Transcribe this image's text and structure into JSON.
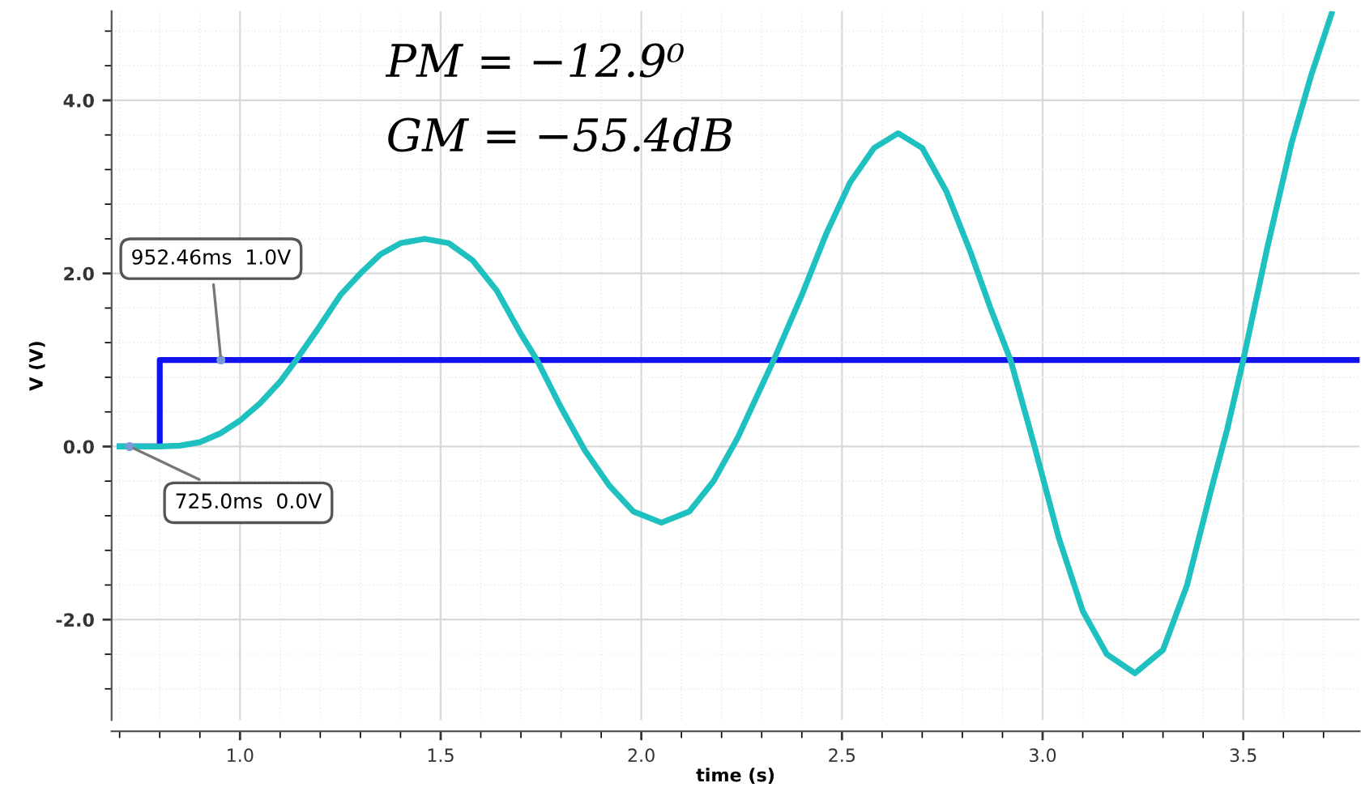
{
  "chart_data": {
    "type": "line",
    "xlabel": "time (s)",
    "ylabel": "V (V)",
    "xlim": [
      0.68,
      3.79
    ],
    "ylim": [
      -3.16,
      5.03
    ],
    "xticks": [
      {
        "value": 1,
        "label": "1.0"
      },
      1.5,
      {
        "value": 2,
        "label": "2.0"
      },
      2.5,
      {
        "value": 3,
        "label": "3.0"
      },
      3.5
    ],
    "yticks": [
      {
        "value": -2,
        "label": "-2.0"
      },
      {
        "value": 0,
        "label": "0.0"
      },
      {
        "value": 2,
        "label": "2.0"
      },
      {
        "value": 4,
        "label": "4.0"
      }
    ],
    "grid": true,
    "line_style": "solid",
    "marker": "none",
    "series": [
      {
        "color": "#1212ee",
        "type": "step",
        "x": [
          0.7,
          0.8,
          3.79
        ],
        "values": [
          0,
          1,
          1
        ]
      },
      {
        "color": "#1ec0c0",
        "x": [
          0.7,
          0.8,
          0.85,
          0.9,
          0.95,
          1.0,
          1.05,
          1.1,
          1.14,
          1.2,
          1.25,
          1.3,
          1.35,
          1.4,
          1.46,
          1.52,
          1.58,
          1.64,
          1.7,
          1.74,
          1.8,
          1.86,
          1.92,
          1.98,
          2.05,
          2.12,
          2.18,
          2.24,
          2.28,
          2.33,
          2.4,
          2.46,
          2.52,
          2.58,
          2.64,
          2.7,
          2.76,
          2.82,
          2.87,
          2.92,
          2.98,
          3.04,
          3.1,
          3.16,
          3.23,
          3.3,
          3.36,
          3.42,
          3.46,
          3.5,
          3.56,
          3.62,
          3.67,
          3.72
        ],
        "values": [
          0,
          0,
          0.01,
          0.05,
          0.15,
          0.3,
          0.5,
          0.75,
          1.0,
          1.4,
          1.75,
          2.0,
          2.22,
          2.35,
          2.4,
          2.35,
          2.15,
          1.8,
          1.3,
          1.0,
          0.45,
          -0.05,
          -0.45,
          -0.75,
          -0.88,
          -0.75,
          -0.4,
          0.1,
          0.5,
          1.0,
          1.75,
          2.45,
          3.05,
          3.45,
          3.62,
          3.45,
          2.95,
          2.25,
          1.6,
          1.0,
          0.0,
          -1.05,
          -1.9,
          -2.4,
          -2.62,
          -2.35,
          -1.6,
          -0.5,
          0.2,
          1.0,
          2.3,
          3.5,
          4.3,
          5.0
        ]
      }
    ],
    "annotations": [
      {
        "text": "952.46ms  1.0V",
        "x": 0.95246,
        "y": 1.0
      },
      {
        "text": "725.0ms  0.0V",
        "x": 0.725,
        "y": 0.0
      },
      "PM = −12.9⁰",
      "GM = −55.4dB"
    ]
  }
}
